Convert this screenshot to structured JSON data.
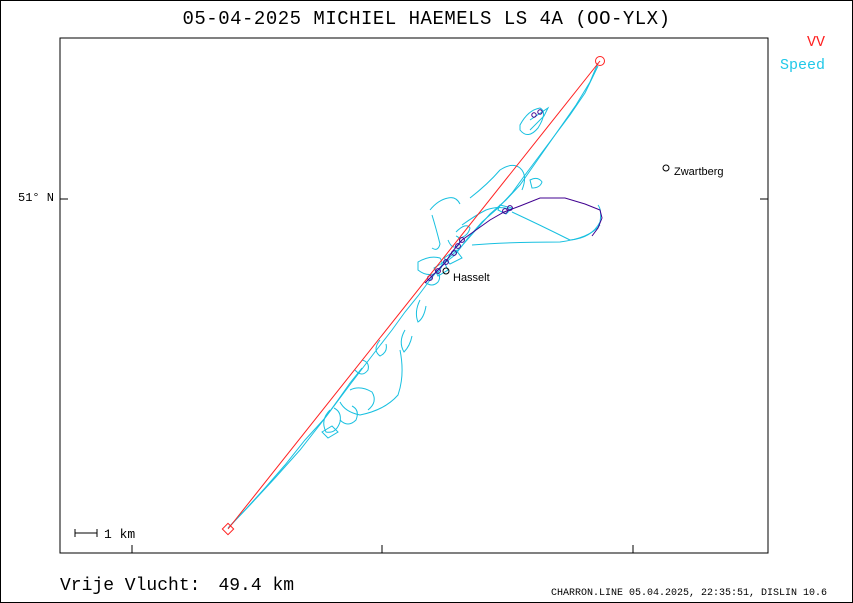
{
  "title": "05-04-2025   MICHIEL HAEMELS   LS 4A (OO-YLX)",
  "legend": {
    "vv": {
      "label": "VV",
      "color": "#ff2020"
    },
    "speed": {
      "label": "Speed",
      "color": "#20c8e8"
    }
  },
  "axis": {
    "lat_label": "51° N"
  },
  "places": [
    {
      "name": "Zwartberg"
    },
    {
      "name": "Hasselt"
    }
  ],
  "scale": {
    "label": "1  km"
  },
  "footer": {
    "distance_label": "Vrije Vlucht:",
    "distance_value": "49.4 km",
    "credit": "CHARRON.LINE 05.04.2025, 22:35:51, DISLIN 10.6"
  },
  "colors": {
    "track": "#18c0e0",
    "line": "#ff2020",
    "climb": "#400090"
  }
}
